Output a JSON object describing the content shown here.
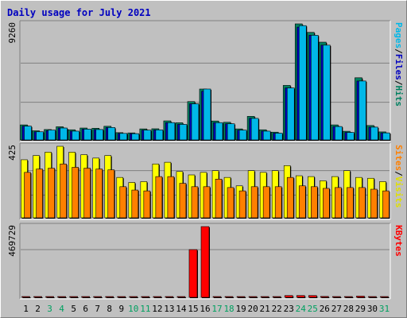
{
  "chart_data": {
    "type": "bar",
    "title": "Daily usage for July 2021",
    "categories": [
      "1",
      "2",
      "3",
      "4",
      "5",
      "6",
      "7",
      "8",
      "9",
      "10",
      "11",
      "12",
      "13",
      "14",
      "15",
      "16",
      "17",
      "18",
      "19",
      "20",
      "21",
      "22",
      "23",
      "24",
      "25",
      "26",
      "27",
      "28",
      "29",
      "30",
      "31"
    ],
    "weekend_days": [
      "3",
      "4",
      "10",
      "11",
      "17",
      "18",
      "24",
      "25",
      "31"
    ],
    "panels": [
      {
        "y_max_label": "9260",
        "side_labels": [
          {
            "text": "Pages",
            "color": "#00b8e8"
          },
          {
            "text": "/",
            "color": "#000000"
          },
          {
            "text": "Files",
            "color": "#0000c0"
          },
          {
            "text": "/",
            "color": "#000000"
          },
          {
            "text": "Hits",
            "color": "#008060"
          }
        ],
        "series": [
          {
            "name": "Hits",
            "color": "#008060",
            "values": [
              1200,
              730,
              830,
              1050,
              810,
              950,
              930,
              1090,
              580,
              560,
              880,
              890,
              1520,
              1370,
              3060,
              4060,
              1510,
              1410,
              880,
              1880,
              810,
              620,
              4350,
              9260,
              8580,
              7800,
              1200,
              690,
              4960,
              1150,
              640
            ]
          },
          {
            "name": "Files",
            "color": "#0000c0",
            "values": [
              1100,
              650,
              740,
              950,
              700,
              860,
              830,
              990,
              520,
              500,
              780,
              800,
              1380,
              1240,
              2880,
              3880,
              1380,
              1290,
              780,
              1720,
              700,
              540,
              4150,
              9000,
              8350,
              7560,
              1070,
              600,
              4700,
              1020,
              560
            ]
          },
          {
            "name": "Pages",
            "color": "#00b8e8",
            "values": [
              1100,
              650,
              790,
              950,
              700,
              860,
              830,
              990,
              520,
              500,
              780,
              800,
              1380,
              1240,
              2880,
              4060,
              1380,
              1290,
              780,
              1720,
              700,
              540,
              4150,
              9120,
              8350,
              7560,
              1070,
              600,
              4700,
              1020,
              560
            ]
          }
        ]
      },
      {
        "y_max_label": "425",
        "side_labels": [
          {
            "text": "Sites",
            "color": "#ff8000"
          },
          {
            "text": "/",
            "color": "#000000"
          },
          {
            "text": "Visits",
            "color": "#e0e000"
          }
        ],
        "series": [
          {
            "name": "Visits",
            "color": "#ffff00",
            "values": [
              345,
              370,
              390,
              425,
              390,
              375,
              355,
              370,
              240,
              210,
              215,
              320,
              330,
              275,
              255,
              270,
              280,
              240,
              190,
              280,
              270,
              280,
              310,
              250,
              245,
              220,
              245,
              280,
              240,
              235,
              215
            ]
          },
          {
            "name": "Sites",
            "color": "#ff8000",
            "values": [
              270,
              290,
              295,
              320,
              300,
              295,
              290,
              285,
              185,
              165,
              160,
              245,
              245,
              205,
              185,
              185,
              230,
              180,
              160,
              185,
              185,
              185,
              240,
              190,
              185,
              175,
              180,
              180,
              180,
              170,
              160
            ]
          }
        ]
      },
      {
        "y_max_label": "469729",
        "side_labels": [
          {
            "text": "KBytes",
            "color": "#ff0000"
          }
        ],
        "series": [
          {
            "name": "KBytes",
            "color": "#ff0000",
            "values": [
              4000,
              3500,
              4000,
              4000,
              3500,
              3500,
              3500,
              4000,
              2500,
              2500,
              3000,
              3000,
              4000,
              4000,
              317000,
              469729,
              5000,
              4000,
              3000,
              5000,
              3000,
              2500,
              12000,
              12000,
              12000,
              6000,
              4000,
              3000,
              8000,
              4000,
              3000
            ]
          }
        ]
      }
    ],
    "colors": {
      "plot_background": "#c0c0c0",
      "weekday_label": "#000000",
      "weekend_label": "#00a060",
      "title": "#0000c0"
    }
  }
}
